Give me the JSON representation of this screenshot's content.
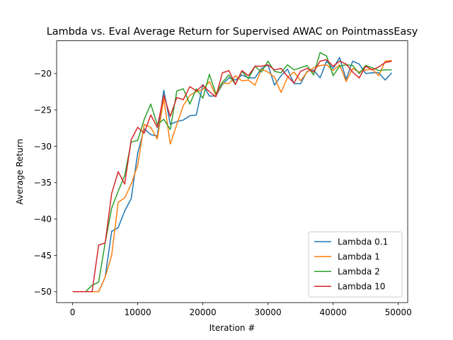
{
  "chart_data": {
    "type": "line",
    "title": "Lambda vs. Eval Average Return for Supervised AWAC on PointmassEasy",
    "xlabel": "Iteration #",
    "ylabel": "Average Return",
    "xlim": [
      -2450,
      51450
    ],
    "ylim": [
      -51.5,
      -15.5
    ],
    "xticks": [
      0,
      10000,
      20000,
      30000,
      40000,
      50000
    ],
    "yticks": [
      -50,
      -45,
      -40,
      -35,
      -30,
      -25,
      -20
    ],
    "grid": false,
    "legend_position": "lower-right",
    "x": [
      0,
      1000,
      2000,
      3000,
      4000,
      5000,
      6000,
      7000,
      8000,
      9000,
      10000,
      11000,
      12000,
      13000,
      14000,
      15000,
      16000,
      17000,
      18000,
      19000,
      20000,
      21000,
      22000,
      23000,
      24000,
      25000,
      26000,
      27000,
      28000,
      29000,
      30000,
      31000,
      32000,
      33000,
      34000,
      35000,
      36000,
      37000,
      38000,
      39000,
      40000,
      41000,
      42000,
      43000,
      44000,
      45000,
      46000,
      47000,
      48000,
      49000
    ],
    "series": [
      {
        "name": "Lambda 0.1",
        "color": "#1f77b4",
        "values": [
          -50,
          -50,
          -50,
          -50,
          -50,
          -48,
          -41.7,
          -41.2,
          -38.9,
          -37.2,
          -30.9,
          -27.6,
          -28.4,
          -28.6,
          -22.3,
          -27.0,
          -26.6,
          -26.4,
          -25.8,
          -25.7,
          -21.5,
          -23.1,
          -23.1,
          -21.5,
          -20.6,
          -20.9,
          -20.2,
          -20.6,
          -20.6,
          -19.3,
          -18.8,
          -21.6,
          -20.3,
          -19.4,
          -21.4,
          -21.4,
          -19.7,
          -19.5,
          -20.6,
          -18.3,
          -19.3,
          -17.8,
          -20.8,
          -18.3,
          -18.7,
          -20.0,
          -19.9,
          -19.9,
          -20.9,
          -19.9
        ]
      },
      {
        "name": "Lambda 1",
        "color": "#ff7f0e",
        "values": [
          -50,
          -50,
          -50,
          -50,
          -50,
          -48.0,
          -45.0,
          -37.7,
          -37.1,
          -35.2,
          -32.6,
          -27.0,
          -27.4,
          -29.0,
          -23.5,
          -29.7,
          -27.0,
          -24.4,
          -23.0,
          -22.5,
          -22.2,
          -21.1,
          -23.0,
          -21.3,
          -21.4,
          -20.3,
          -21.0,
          -20.9,
          -21.6,
          -19.4,
          -19.8,
          -20.5,
          -22.6,
          -20.5,
          -19.8,
          -21.0,
          -19.8,
          -19.2,
          -18.9,
          -18.8,
          -19.6,
          -18.8,
          -21.1,
          -19.3,
          -19.8,
          -19.5,
          -19.4,
          -20.3,
          -18.3,
          -18.2
        ]
      },
      {
        "name": "Lambda 2",
        "color": "#2ca02c",
        "values": [
          -50,
          -50,
          -50,
          -49.1,
          -48.7,
          -43.3,
          -38.5,
          -36.2,
          -34.0,
          -29.4,
          -29.2,
          -26.3,
          -24.2,
          -27.0,
          -26.3,
          -27.7,
          -22.4,
          -22.1,
          -24.2,
          -22.1,
          -23.4,
          -20.1,
          -22.8,
          -21.2,
          -20.2,
          -21.5,
          -19.7,
          -20.7,
          -19.0,
          -19.8,
          -18.3,
          -19.7,
          -19.9,
          -18.8,
          -19.5,
          -19.2,
          -18.9,
          -20.2,
          -17.1,
          -17.6,
          -20.3,
          -19.0,
          -18.8,
          -18.9,
          -20.0,
          -18.9,
          -19.2,
          -19.6,
          -19.5,
          -19.5
        ]
      },
      {
        "name": "Lambda 10",
        "color": "#d62728",
        "values": [
          -50,
          -50,
          -50,
          -50,
          -43.6,
          -43.3,
          -36.5,
          -33.5,
          -35.2,
          -29.1,
          -27.4,
          -28.2,
          -25.7,
          -27.4,
          -23.0,
          -25.9,
          -23.3,
          -23.6,
          -21.8,
          -22.4,
          -21.6,
          -22.5,
          -23.2,
          -19.9,
          -19.6,
          -21.5,
          -19.6,
          -20.3,
          -19.0,
          -19.0,
          -18.8,
          -19.5,
          -19.3,
          -20.4,
          -21.3,
          -19.7,
          -19.3,
          -19.8,
          -18.3,
          -18.1,
          -19.0,
          -18.3,
          -18.7,
          -19.8,
          -20.6,
          -19.0,
          -19.5,
          -19.1,
          -18.5,
          -18.3
        ]
      }
    ]
  }
}
